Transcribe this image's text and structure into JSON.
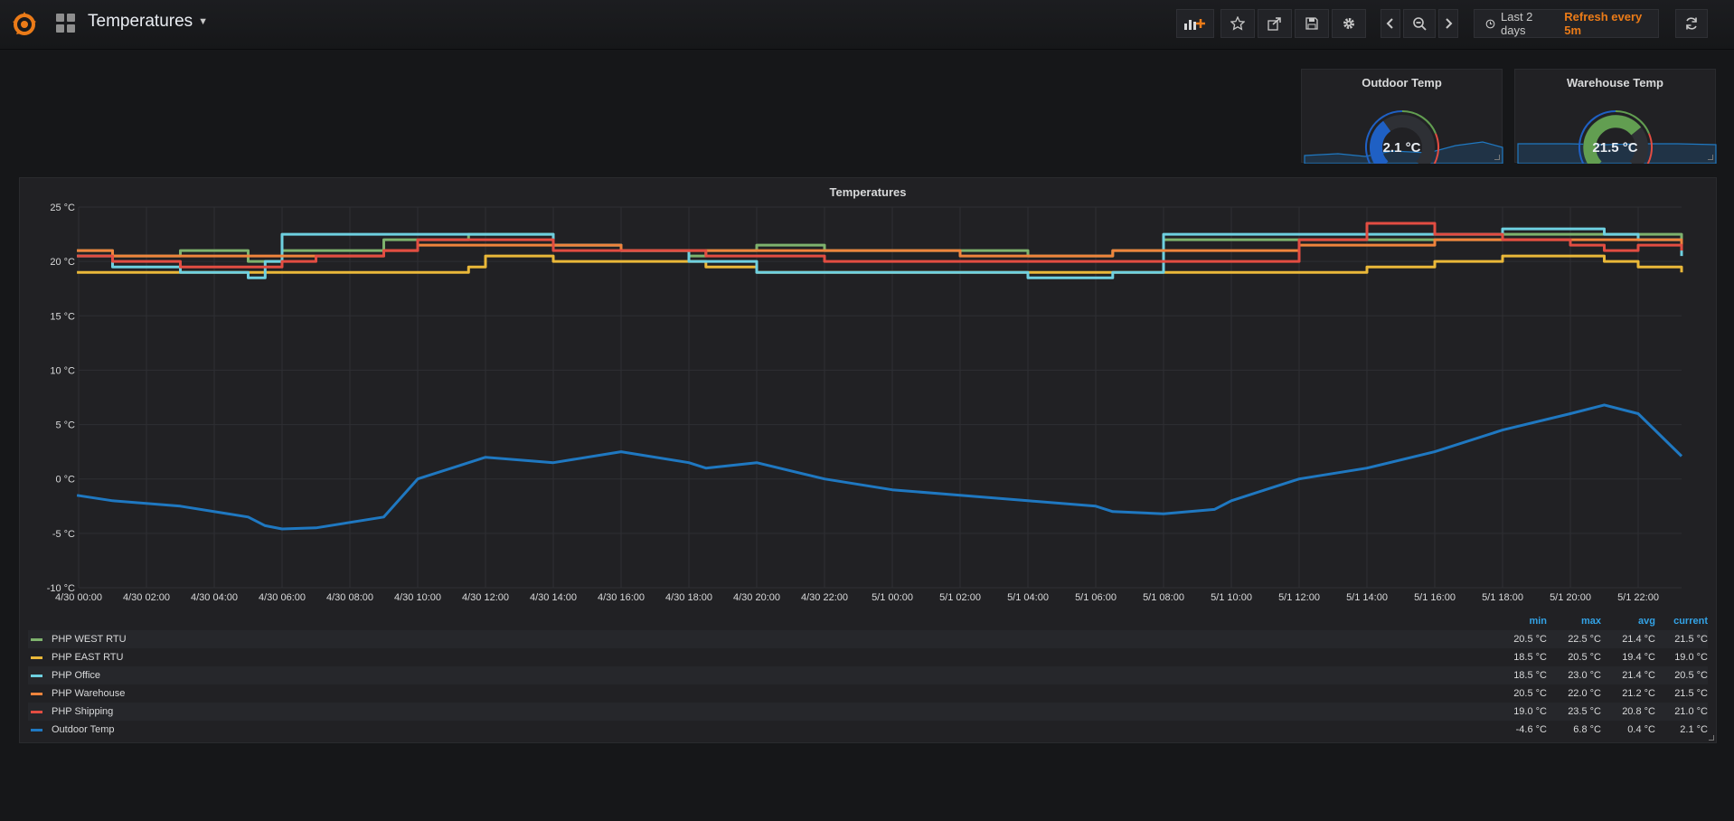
{
  "nav": {
    "dashboard_title": "Temperatures",
    "time_range": "Last 2 days",
    "refresh": "Refresh every 5m",
    "icons": [
      "grafana-logo-icon",
      "apps-grid-icon",
      "add-panel-icon",
      "star-icon",
      "share-icon",
      "save-icon",
      "settings-icon",
      "chevron-left-icon",
      "zoom-out-icon",
      "chevron-right-icon",
      "clock-icon",
      "refresh-icon"
    ],
    "logo_color": "#eb7b18"
  },
  "stat_panels": [
    {
      "title": "Outdoor Temp",
      "value": "2.1 °C",
      "gauge_min": -20,
      "gauge_max": 40,
      "gauge_value": 2.1,
      "gauge_color": "#1f60c4"
    },
    {
      "title": "Warehouse Temp",
      "value": "21.5 °C",
      "gauge_min": -20,
      "gauge_max": 40,
      "gauge_value": 21.5,
      "gauge_color": "#629e51"
    }
  ],
  "graph": {
    "title": "Temperatures",
    "legend_columns": [
      "min",
      "max",
      "avg",
      "current"
    ],
    "legend": [
      {
        "name": "PHP WEST RTU",
        "color": "#7eb26d",
        "min": "20.5 °C",
        "max": "22.5 °C",
        "avg": "21.4 °C",
        "current": "21.5 °C"
      },
      {
        "name": "PHP EAST RTU",
        "color": "#eab839",
        "min": "18.5 °C",
        "max": "20.5 °C",
        "avg": "19.4 °C",
        "current": "19.0 °C"
      },
      {
        "name": "PHP Office",
        "color": "#6ed0e0",
        "min": "18.5 °C",
        "max": "23.0 °C",
        "avg": "21.4 °C",
        "current": "20.5 °C"
      },
      {
        "name": "PHP Warehouse",
        "color": "#ef843c",
        "min": "20.5 °C",
        "max": "22.0 °C",
        "avg": "21.2 °C",
        "current": "21.5 °C"
      },
      {
        "name": "PHP Shipping",
        "color": "#e24d42",
        "min": "19.0 °C",
        "max": "23.5 °C",
        "avg": "20.8 °C",
        "current": "21.0 °C"
      },
      {
        "name": "Outdoor Temp",
        "color": "#1f78c1",
        "min": "-4.6 °C",
        "max": "6.8 °C",
        "avg": "0.4 °C",
        "current": "2.1 °C"
      }
    ]
  },
  "chart_data": {
    "type": "line",
    "title": "Temperatures",
    "ylim": [
      -10,
      25
    ],
    "yticks": [
      "25 °C",
      "20 °C",
      "15 °C",
      "10 °C",
      "5 °C",
      "0 °C",
      "-5 °C",
      "-10 °C"
    ],
    "xticks": [
      "4/30 00:00",
      "4/30 02:00",
      "4/30 04:00",
      "4/30 06:00",
      "4/30 08:00",
      "4/30 10:00",
      "4/30 12:00",
      "4/30 14:00",
      "4/30 16:00",
      "4/30 18:00",
      "4/30 20:00",
      "4/30 22:00",
      "5/1 00:00",
      "5/1 02:00",
      "5/1 04:00",
      "5/1 06:00",
      "5/1 08:00",
      "5/1 10:00",
      "5/1 12:00",
      "5/1 14:00",
      "5/1 16:00",
      "5/1 18:00",
      "5/1 20:00",
      "5/1 22:00"
    ],
    "x_hours": [
      -0.5,
      1,
      3,
      5,
      5.5,
      6,
      7,
      9,
      10,
      11.5,
      12,
      14,
      16,
      18,
      18.5,
      20,
      22,
      24,
      26,
      28,
      30,
      30.5,
      32,
      33.5,
      34,
      35,
      36,
      38,
      40,
      42,
      44,
      45,
      46,
      47.5
    ],
    "grid": true,
    "legend_position": "bottom",
    "series": [
      {
        "name": "PHP WEST RTU",
        "values": [
          21,
          20.5,
          21,
          20,
          20,
          21,
          21,
          22,
          22,
          22.5,
          22.5,
          21.5,
          21,
          20.5,
          21,
          21.5,
          21,
          21,
          21,
          20.5,
          20.5,
          21,
          22,
          22,
          22,
          22,
          22,
          22,
          22,
          22.5,
          22.5,
          22.5,
          22.5,
          21.5
        ]
      },
      {
        "name": "PHP EAST RTU",
        "values": [
          19,
          19,
          19,
          19,
          19,
          19,
          19,
          19,
          19,
          19.5,
          20.5,
          20,
          20,
          20,
          19.5,
          19,
          19,
          19,
          19,
          19,
          19,
          19,
          19,
          19,
          19,
          19,
          19,
          19.5,
          20,
          20.5,
          20.5,
          20,
          19.5,
          19
        ]
      },
      {
        "name": "PHP Office",
        "values": [
          20.5,
          19.5,
          19,
          18.5,
          20,
          22.5,
          22.5,
          22.5,
          22.5,
          22.5,
          22.5,
          21.5,
          21,
          20,
          20,
          19,
          19,
          19,
          19,
          18.5,
          18.5,
          19,
          22.5,
          22.5,
          22.5,
          22.5,
          22.5,
          22.5,
          22.5,
          23,
          23,
          22.5,
          22,
          20.5
        ]
      },
      {
        "name": "PHP Warehouse",
        "values": [
          21,
          20.5,
          20.5,
          20.5,
          20.5,
          20.5,
          20.5,
          21,
          21.5,
          21.5,
          21.5,
          21.5,
          21,
          21,
          21,
          21,
          21,
          21,
          20.5,
          20.5,
          20.5,
          21,
          21,
          21,
          21,
          21,
          21.5,
          21.5,
          22,
          22,
          22,
          22,
          22,
          21.5
        ]
      },
      {
        "name": "PHP Shipping",
        "values": [
          20.5,
          20,
          19.5,
          19.5,
          19.5,
          20,
          20.5,
          21,
          22,
          22,
          22,
          21,
          21,
          21,
          20.5,
          20.5,
          20,
          20,
          20,
          20,
          20,
          20,
          20,
          20,
          20,
          20,
          22,
          23.5,
          22.5,
          22,
          21.5,
          21,
          21.5,
          21
        ]
      },
      {
        "name": "Outdoor Temp",
        "values": [
          -1.5,
          -2,
          -2.5,
          -3.5,
          -4.3,
          -4.6,
          -4.5,
          -3.5,
          0,
          1.5,
          2,
          1.5,
          2.5,
          1.5,
          1,
          1.5,
          0,
          -1,
          -1.5,
          -2,
          -2.5,
          -3,
          -3.2,
          -2.8,
          -2,
          -1,
          0,
          1,
          2.5,
          4.5,
          6,
          6.8,
          6,
          2.1
        ]
      }
    ]
  }
}
